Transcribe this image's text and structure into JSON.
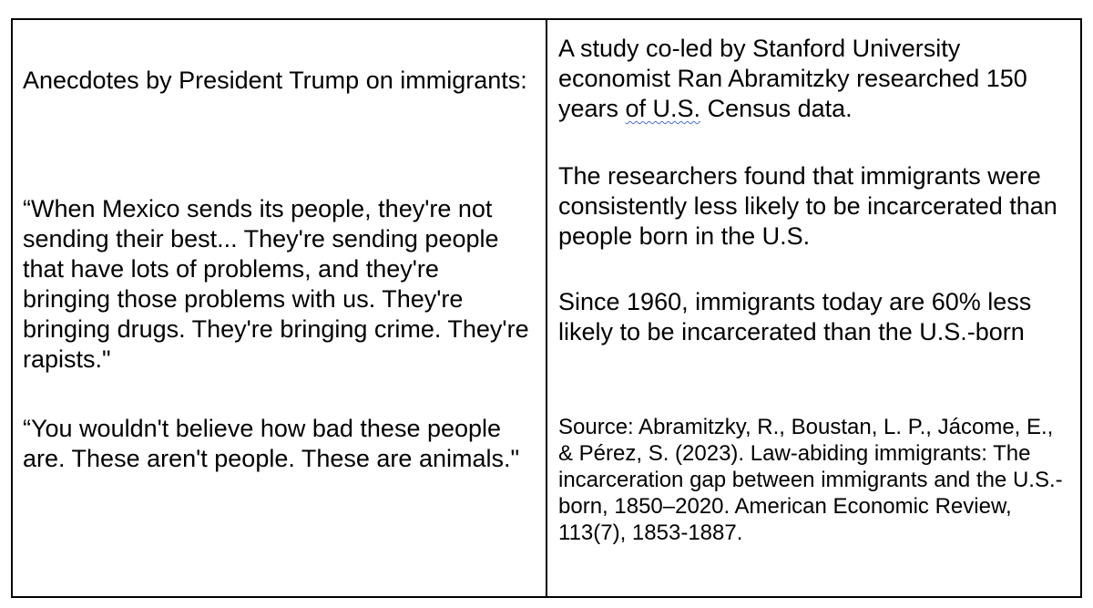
{
  "left_column": {
    "heading": "Anecdotes by President Trump on immigrants:",
    "quote_1": "“When Mexico sends its people, they're not sending their best... They're sending people that have lots of problems, and they're bringing those problems with us. They're bringing drugs. They're bringing crime. They're rapists.\"",
    "quote_2": "“You wouldn't believe how bad these people are. These aren't people. These are animals.\""
  },
  "right_column": {
    "intro_before": "A study co-led by Stanford University economist Ran Abramitzky researched 150 years ",
    "intro_flagged": "of U.S.",
    "intro_after": " Census data.",
    "finding_1": "The researchers found that immigrants were consistently less likely to be incarcerated than people born in the U.S.",
    "finding_2": "Since 1960, immigrants today are 60% less likely to be incarcerated than the U.S.-born",
    "source": "Source: Abramitzky, R., Boustan, L. P., Jácome, E., & Pérez, S. (2023). Law-abiding immigrants: The incarceration gap between immigrants and the U.S.-born, 1850–2020. American Economic Review, 113(7), 1853-1887."
  },
  "colors": {
    "text": "#000000",
    "border": "#000000",
    "spellcheck_underline": "#4a6fd6"
  }
}
